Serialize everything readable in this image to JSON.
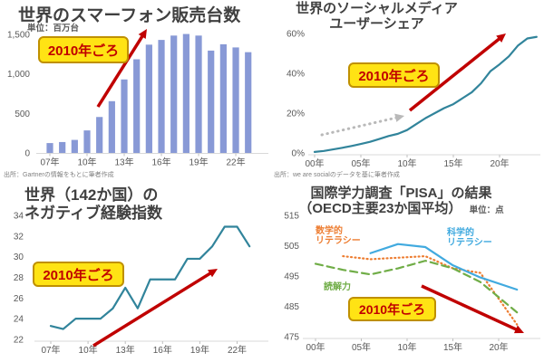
{
  "theme": {
    "background": "#ffffff",
    "title_color": "#404040",
    "axis_text_color": "#595959",
    "axis_line_color": "#d9d9d9",
    "tick_color": "#bfbfbf",
    "callout_bg": "#ffe314",
    "callout_border": "#bf9000",
    "callout_text": "#c00000",
    "arrow_red": "#c00000",
    "arrow_gray": "#b9b9b9"
  },
  "chart_data": [
    {
      "id": "smartphone-sales",
      "type": "bar",
      "title": "世界のスマーフォン販売台数",
      "unit_label": "単位：百万台",
      "source": "出所：Gartnerの情報をもとに筆者作成",
      "annotation": "2010年ごろ",
      "color": "#8899d6",
      "years": [
        2007,
        2008,
        2009,
        2010,
        2011,
        2012,
        2013,
        2014,
        2015,
        2016,
        2017,
        2018,
        2019,
        2020,
        2021,
        2022,
        2023
      ],
      "values": [
        125,
        138,
        165,
        285,
        455,
        655,
        930,
        1185,
        1370,
        1430,
        1485,
        1505,
        1485,
        1295,
        1375,
        1335,
        1275
      ],
      "ylim": [
        0,
        1500
      ],
      "y_ticks": [
        0,
        500,
        1000,
        1500
      ],
      "y_tick_labels": [
        "0",
        "500",
        "1,000",
        "1,500"
      ],
      "x_tick_years": [
        2007,
        2010,
        2013,
        2016,
        2019,
        2022
      ],
      "x_tick_labels": [
        "07年",
        "10年",
        "13年",
        "16年",
        "19年",
        "22年"
      ],
      "grid": false,
      "legend": "none"
    },
    {
      "id": "social-media-user-share",
      "type": "line",
      "title_line1": "世界のソーシャルメディア",
      "title_line2": "ユーザーシェア",
      "source": "出所：we are socialのデータを基に筆者作成",
      "annotation": "2010年ごろ",
      "color": "#31849b",
      "years": [
        2000,
        2001,
        2002,
        2003,
        2004,
        2005,
        2006,
        2007,
        2008,
        2009,
        2010,
        2011,
        2012,
        2013,
        2014,
        2015,
        2016,
        2017,
        2018,
        2019,
        2020,
        2021,
        2022,
        2023,
        2024
      ],
      "values": [
        0.5,
        1,
        1.8,
        2.6,
        3.5,
        4.5,
        5.6,
        7,
        8.5,
        9.6,
        11.5,
        14.5,
        17.5,
        20,
        22.5,
        24.5,
        27.5,
        30.5,
        35,
        41,
        44.5,
        48.5,
        54,
        57.5,
        58.3
      ],
      "ylim": [
        0,
        60
      ],
      "y_ticks": [
        0,
        20,
        40,
        60
      ],
      "y_tick_labels": [
        "0%",
        "20%",
        "40%",
        "60%"
      ],
      "x_tick_years": [
        2000,
        2005,
        2010,
        2015,
        2020
      ],
      "x_tick_labels": [
        "00年",
        "05年",
        "10年",
        "15年",
        "20年"
      ],
      "grid": false,
      "legend": "none"
    },
    {
      "id": "negative-experience-index",
      "type": "line",
      "title_line1": "世界（142か国）の",
      "title_line2": "ネガティブ経験指数",
      "annotation": "2010年ごろ",
      "color": "#31849b",
      "years": [
        2007,
        2008,
        2009,
        2010,
        2011,
        2012,
        2013,
        2014,
        2015,
        2016,
        2017,
        2018,
        2019,
        2020,
        2021,
        2022,
        2023
      ],
      "values": [
        23.3,
        23,
        24,
        24,
        24,
        25,
        27,
        25,
        27.8,
        27.8,
        27.8,
        29.8,
        29.8,
        31,
        32.9,
        32.9,
        31
      ],
      "ylim": [
        22,
        34
      ],
      "y_ticks": [
        22,
        24,
        26,
        28,
        30,
        32,
        34
      ],
      "y_tick_labels": [
        "22",
        "24",
        "26",
        "28",
        "30",
        "32",
        "34"
      ],
      "x_tick_years": [
        2007,
        2010,
        2013,
        2016,
        2019,
        2022
      ],
      "x_tick_labels": [
        "07年",
        "10年",
        "13年",
        "16年",
        "19年",
        "22年"
      ],
      "grid": false,
      "legend": "none"
    },
    {
      "id": "pisa-results",
      "type": "line",
      "title_line1": "国際学力調査「PISA」の結果",
      "title_line2": "（OECD主要23か国平均）",
      "unit_label": "単位：点",
      "annotation": "2010年ごろ",
      "ylim": [
        475,
        515
      ],
      "y_ticks": [
        475,
        485,
        495,
        505,
        515
      ],
      "y_tick_labels": [
        "475",
        "485",
        "495",
        "505",
        "515"
      ],
      "x_tick_years": [
        2000,
        2005,
        2010,
        2015,
        2020
      ],
      "x_tick_labels": [
        "00年",
        "05年",
        "10年",
        "15年",
        "20年"
      ],
      "grid": false,
      "legend": "inline-labels",
      "series": [
        {
          "name": "数学的リテラシー",
          "label_lines": [
            "数学的",
            "リテラシー"
          ],
          "style": "dotted",
          "color": "#ed7d31",
          "years": [
            2003,
            2006,
            2009,
            2012,
            2015,
            2018,
            2022
          ],
          "values": [
            501.5,
            500.5,
            501,
            501.5,
            497.5,
            496,
            479
          ]
        },
        {
          "name": "科学的リテラシー",
          "label_lines": [
            "科学的",
            "リテラシー"
          ],
          "style": "solid",
          "color": "#41aadf",
          "years": [
            2006,
            2009,
            2012,
            2015,
            2018,
            2022
          ],
          "values": [
            502.5,
            505.5,
            504.5,
            498.5,
            494.5,
            490.5
          ]
        },
        {
          "name": "読解力",
          "label_lines": [
            "読解力"
          ],
          "style": "dashed",
          "color": "#70ad47",
          "years": [
            2000,
            2003,
            2006,
            2009,
            2012,
            2015,
            2018,
            2022
          ],
          "values": [
            499,
            497,
            495.5,
            497.5,
            500,
            497.5,
            493,
            483
          ]
        }
      ]
    }
  ]
}
